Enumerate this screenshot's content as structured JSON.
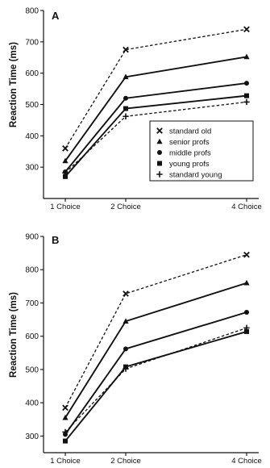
{
  "chart_data": [
    {
      "type": "line",
      "panel_label": "A",
      "ylabel": "Reaction Time (ms)",
      "xlabel": "",
      "categories": [
        "1 Choice",
        "2 Choice",
        "4 Choice"
      ],
      "x": [
        1,
        2,
        4
      ],
      "ylim": [
        200,
        800
      ],
      "yticks": [
        300,
        400,
        500,
        600,
        700,
        800
      ],
      "legend": "inside-right",
      "grid": false,
      "series": [
        {
          "name": "standard old",
          "marker": "x",
          "dash": true,
          "values": [
            360,
            675,
            740
          ]
        },
        {
          "name": "senior profs",
          "marker": "triangle",
          "dash": false,
          "values": [
            320,
            588,
            652
          ]
        },
        {
          "name": "middle profs",
          "marker": "circle",
          "dash": false,
          "values": [
            285,
            520,
            568
          ]
        },
        {
          "name": "young profs",
          "marker": "square",
          "dash": false,
          "values": [
            270,
            487,
            528
          ]
        },
        {
          "name": "standard young",
          "marker": "plus",
          "dash": true,
          "values": [
            282,
            462,
            508
          ]
        }
      ]
    },
    {
      "type": "line",
      "panel_label": "B",
      "ylabel": "Reaction Time (ms)",
      "xlabel": "",
      "categories": [
        "1 Choice",
        "2 Choice",
        "4 Choice"
      ],
      "x": [
        1,
        2,
        4
      ],
      "ylim": [
        250,
        900
      ],
      "yticks": [
        300,
        400,
        500,
        600,
        700,
        800,
        900
      ],
      "grid": false,
      "series": [
        {
          "name": "standard old",
          "marker": "x",
          "dash": true,
          "values": [
            385,
            728,
            845
          ]
        },
        {
          "name": "senior profs",
          "marker": "triangle",
          "dash": false,
          "values": [
            355,
            645,
            760
          ]
        },
        {
          "name": "middle profs",
          "marker": "circle",
          "dash": false,
          "values": [
            305,
            562,
            672
          ]
        },
        {
          "name": "young profs",
          "marker": "square",
          "dash": false,
          "values": [
            285,
            508,
            614
          ]
        },
        {
          "name": "standard young",
          "marker": "plus",
          "dash": true,
          "values": [
            312,
            502,
            625
          ]
        }
      ]
    }
  ]
}
